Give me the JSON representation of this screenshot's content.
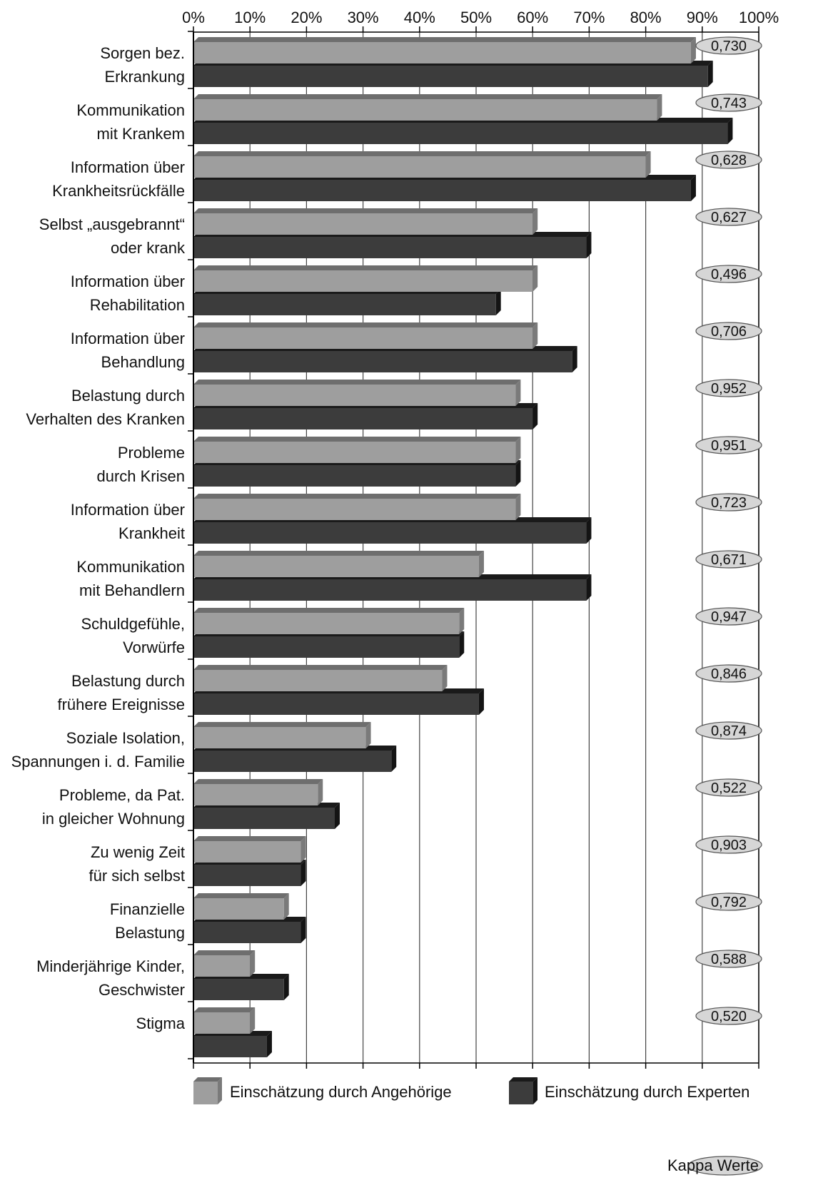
{
  "chart_data": {
    "type": "bar",
    "orientation": "horizontal",
    "grouped": true,
    "x_ticks": [
      "0%",
      "10%",
      "20%",
      "30%",
      "40%",
      "50%",
      "60%",
      "70%",
      "80%",
      "90%",
      "100%"
    ],
    "xlim": [
      0,
      100
    ],
    "grid": "vertical",
    "categories": [
      [
        "Sorgen bez.",
        "Erkrankung"
      ],
      [
        "Kommunikation",
        "mit Krankem"
      ],
      [
        "Information über",
        "Krankheitsrückfälle"
      ],
      [
        "Selbst „ausgebrannt“",
        "oder krank"
      ],
      [
        "Information über",
        "Rehabilitation"
      ],
      [
        "Information über",
        "Behandlung"
      ],
      [
        "Belastung durch",
        "Verhalten des Kranken"
      ],
      [
        "Probleme",
        "durch Krisen"
      ],
      [
        "Information über",
        "Krankheit"
      ],
      [
        "Kommunikation",
        "mit Behandlern"
      ],
      [
        "Schuldgefühle,",
        "Vorwürfe"
      ],
      [
        "Belastung durch",
        "frühere Ereignisse"
      ],
      [
        "Soziale Isolation,",
        "Spannungen i. d. Familie"
      ],
      [
        "Probleme, da Pat.",
        "in gleicher Wohnung"
      ],
      [
        "Zu wenig Zeit",
        "für sich selbst"
      ],
      [
        "Finanzielle",
        "Belastung"
      ],
      [
        "Minderjährige Kinder,",
        "Geschwister"
      ],
      [
        "Stigma"
      ]
    ],
    "series": [
      {
        "name": "Einschätzung durch Angehörige",
        "color": "#9e9e9e",
        "top_color": "#6e6e6e",
        "side_color": "#7a7a7a",
        "values": [
          88,
          82,
          80,
          60,
          60,
          60,
          57,
          57,
          57,
          50.5,
          47,
          44,
          30.5,
          22,
          19,
          16,
          10,
          10
        ]
      },
      {
        "name": "Einschätzung durch Experten",
        "color": "#3c3c3c",
        "top_color": "#1a1a1a",
        "side_color": "#141414",
        "values": [
          91,
          94.5,
          88,
          69.5,
          53.5,
          67,
          60,
          57,
          69.5,
          69.5,
          47,
          50.5,
          35,
          25,
          19,
          19,
          16,
          13
        ]
      }
    ],
    "kappa_values": [
      "0,730",
      "0,743",
      "0,628",
      "0,627",
      "0,496",
      "0,706",
      "0,952",
      "0,951",
      "0,723",
      "0,671",
      "0,947",
      "0,846",
      "0,874",
      "0,522",
      "0,903",
      "0,792",
      "0,588",
      "0,520"
    ],
    "kappa_legend": "Kappa Werte",
    "legend_position": "bottom"
  }
}
